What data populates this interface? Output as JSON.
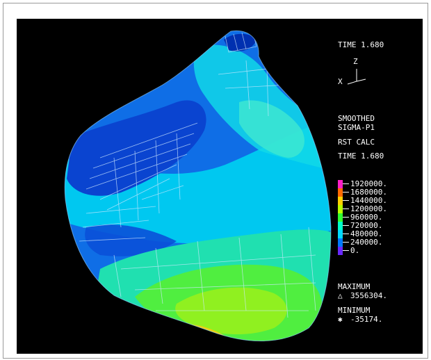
{
  "panel": {
    "time_top": "TIME 1.680",
    "axis_z": "Z",
    "axis_x": "X",
    "smoothed": "SMOOTHED",
    "sigma": "SIGMA-P1",
    "rst_calc": "RST CALC",
    "time_mid": "TIME 1.680"
  },
  "legend": {
    "entries": [
      {
        "label": "1920000.",
        "color": "#ff1ec8"
      },
      {
        "label": "1680000.",
        "color": "#ff6a00"
      },
      {
        "label": "1440000.",
        "color": "#ffd000"
      },
      {
        "label": "1200000.",
        "color": "#b8ff00"
      },
      {
        "label": "960000.",
        "color": "#30ff30"
      },
      {
        "label": "720000.",
        "color": "#00ffc8"
      },
      {
        "label": "480000.",
        "color": "#00d8ff"
      },
      {
        "label": "240000.",
        "color": "#0078ff"
      },
      {
        "label": "0.",
        "color": "#6a28ff"
      }
    ]
  },
  "extrema": {
    "max_label": "MAXIMUM",
    "max_symbol": "△",
    "max_value": "3556304.",
    "min_label": "MINIMUM",
    "min_symbol": "✱",
    "min_value": "-35174."
  }
}
